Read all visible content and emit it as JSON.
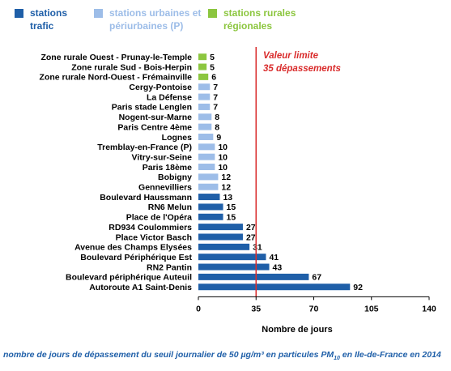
{
  "legend": [
    {
      "label": "stations trafic",
      "color": "#1f5fa8",
      "text_color": "#1f5fa8"
    },
    {
      "label": "stations urbaines et périurbaines (P)",
      "color": "#9dbde8",
      "text_color": "#9dbde8"
    },
    {
      "label": "stations rurales régionales",
      "color": "#8cc63f",
      "text_color": "#8cc63f"
    }
  ],
  "colors": {
    "trafic": "#1f5fa8",
    "urbaine": "#9dbde8",
    "rurale": "#8cc63f",
    "limit_line": "#d92b2b",
    "axis": "#000000"
  },
  "chart_data": {
    "type": "bar",
    "orientation": "horizontal",
    "xlabel": "Nombre de jours",
    "xlim": [
      0,
      140
    ],
    "xticks": [
      0,
      35,
      70,
      105,
      140
    ],
    "reference_line": {
      "value": 35,
      "label_line1": "Valeur limite",
      "label_line2": "35 dépassements"
    },
    "bars": [
      {
        "category": "Zone rurale Ouest - Prunay-le-Temple",
        "value": 5,
        "type": "rurale"
      },
      {
        "category": "Zone rurale Sud - Bois-Herpin",
        "value": 5,
        "type": "rurale"
      },
      {
        "category": "Zone rurale Nord-Ouest - Frémainville",
        "value": 6,
        "type": "rurale"
      },
      {
        "category": "Cergy-Pontoise",
        "value": 7,
        "type": "urbaine"
      },
      {
        "category": "La Défense",
        "value": 7,
        "type": "urbaine"
      },
      {
        "category": "Paris stade Lenglen",
        "value": 7,
        "type": "urbaine"
      },
      {
        "category": "Nogent-sur-Marne",
        "value": 8,
        "type": "urbaine"
      },
      {
        "category": "Paris Centre 4ème",
        "value": 8,
        "type": "urbaine"
      },
      {
        "category": "Lognes",
        "value": 9,
        "type": "urbaine"
      },
      {
        "category": "Tremblay-en-France (P)",
        "value": 10,
        "type": "urbaine"
      },
      {
        "category": "Vitry-sur-Seine",
        "value": 10,
        "type": "urbaine"
      },
      {
        "category": "Paris 18ème",
        "value": 10,
        "type": "urbaine"
      },
      {
        "category": "Bobigny",
        "value": 12,
        "type": "urbaine"
      },
      {
        "category": "Gennevilliers",
        "value": 12,
        "type": "urbaine"
      },
      {
        "category": "Boulevard Haussmann",
        "value": 13,
        "type": "trafic"
      },
      {
        "category": "RN6 Melun",
        "value": 15,
        "type": "trafic"
      },
      {
        "category": "Place de l'Opéra",
        "value": 15,
        "type": "trafic"
      },
      {
        "category": "RD934 Coulommiers",
        "value": 27,
        "type": "trafic"
      },
      {
        "category": "Place Victor Basch",
        "value": 27,
        "type": "trafic"
      },
      {
        "category": "Avenue des Champs Elysées",
        "value": 31,
        "type": "trafic"
      },
      {
        "category": "Boulevard Périphérique Est",
        "value": 41,
        "type": "trafic"
      },
      {
        "category": "RN2 Pantin",
        "value": 43,
        "type": "trafic"
      },
      {
        "category": "Boulevard périphérique Auteuil",
        "value": 67,
        "type": "trafic"
      },
      {
        "category": "Autoroute A1 Saint-Denis",
        "value": 92,
        "type": "trafic"
      }
    ]
  },
  "caption": {
    "before": "nombre de jours de dépassement du seuil journalier de 50 µg/m³ en particules PM",
    "sub": "10",
    "after": " en Ile-de-France en 2014"
  }
}
